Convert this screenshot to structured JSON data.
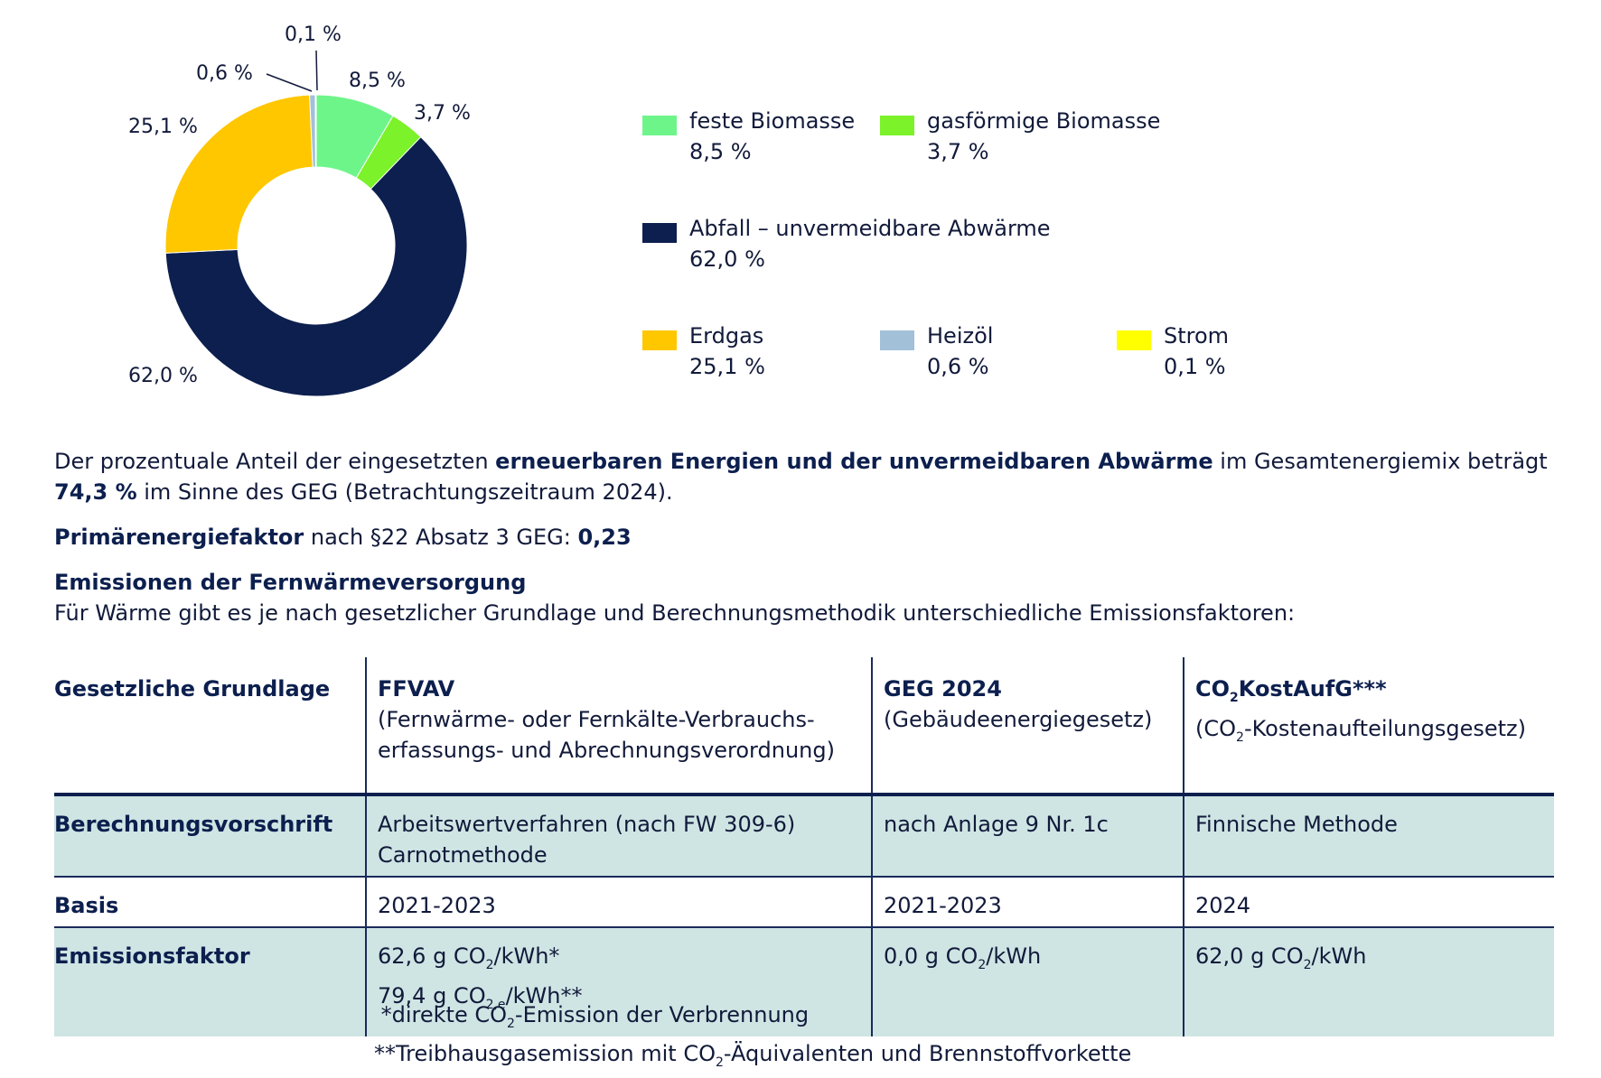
{
  "chart_data": {
    "type": "pie",
    "donut": true,
    "slices": [
      {
        "name": "feste Biomasse",
        "value": 8.5,
        "label": "8,5 %",
        "color": "#6ef58a"
      },
      {
        "name": "gasförmige Biomasse",
        "value": 3.7,
        "label": "3,7 %",
        "color": "#7cf22a"
      },
      {
        "name": "Abfall – unvermeidbare Abwärme",
        "value": 62.0,
        "label": "62,0 %",
        "color": "#0c1f4e"
      },
      {
        "name": "Erdgas",
        "value": 25.1,
        "label": "25,1 %",
        "color": "#ffc700"
      },
      {
        "name": "Heizöl",
        "value": 0.6,
        "label": "0,6 %",
        "color": "#a2c0d8"
      },
      {
        "name": "Strom",
        "value": 0.1,
        "label": "0,1 %",
        "color": "#ffff00"
      }
    ],
    "legend_placement": "right"
  },
  "legend": [
    {
      "name": "feste Biomasse",
      "value": "8,5 %"
    },
    {
      "name": "gasförmige Biomasse",
      "value": "3,7 %"
    },
    {
      "name": "Abfall – unvermeidbare Abwärme",
      "value": "62,0 %"
    },
    {
      "name": "Erdgas",
      "value": "25,1 %"
    },
    {
      "name": "Heizöl",
      "value": "0,6 %"
    },
    {
      "name": "Strom",
      "value": "0,1 %"
    }
  ],
  "text": {
    "p1_a": "Der prozentuale Anteil der eingesetzten ",
    "p1_b": "erneuerbaren Energien und der unvermeidbaren Abwärme",
    "p1_c": " im Gesamtenergiemix beträgt",
    "p1_d": "74,3 %",
    "p1_e": " im Sinne des GEG (Betrachtungszeitraum 2024).",
    "pef_label": "Primärenergiefaktor",
    "pef_mid": " nach §22 Absatz 3 GEG: ",
    "pef_value": "0,23",
    "emis_heading": "Emissionen der Fernwärmeversorgung",
    "emis_intro": "Für Wärme gibt es je nach gesetzlicher Grundlage und Berechnungsmethodik unterschiedliche Emissionsfaktoren:"
  },
  "table": {
    "corner": "Gesetzliche Grundlage",
    "col1_title": "FFVAV",
    "col1_sub1": "(Fernwärme- oder Fernkälte-Verbrauchs-",
    "col1_sub2": "erfassungs- und Abrechnungsverordnung)",
    "col2_title": "GEG 2024",
    "col2_sub": "(Gebäudeenergiegesetz)",
    "col3_title_a": "CO",
    "col3_title_sub": "2",
    "col3_title_b": "KostAufG***",
    "col3_sub_a": "(CO",
    "col3_sub_sub": "2",
    "col3_sub_b": "-Kostenaufteilungsgesetz)",
    "r1_head": "Berechnungsvorschrift",
    "r1_c1_a": "Arbeitswertverfahren (nach FW 309-6)",
    "r1_c1_b": "Carnotmethode",
    "r1_c2": "nach Anlage 9 Nr. 1c",
    "r1_c3": "Finnische Methode",
    "r2_head": "Basis",
    "r2_c1": "2021-2023",
    "r2_c2": "2021-2023",
    "r2_c3": "2024",
    "r3_head": "Emissionsfaktor",
    "r3_c1a_a": "62,6 g CO",
    "r3_c1a_sub": "2",
    "r3_c1a_b": "/kWh*",
    "r3_c1b_a": "79,4 g CO",
    "r3_c1b_sub": "2,e",
    "r3_c1b_b": "/kWh**",
    "r3_c2_a": "0,0 g CO",
    "r3_c2_sub": "2",
    "r3_c2_b": "/kWh",
    "r3_c3_a": "62,0 g CO",
    "r3_c3_sub": "2",
    "r3_c3_b": "/kWh"
  },
  "footnotes": {
    "f1_a": "*direkte CO",
    "f1_sub": "2",
    "f1_b": "-Emission der Verbrennung",
    "f2_a": "**Treibhausgasemission mit CO",
    "f2_sub": "2",
    "f2_b": "-Äquivalenten und Brennstoffvorkette"
  }
}
